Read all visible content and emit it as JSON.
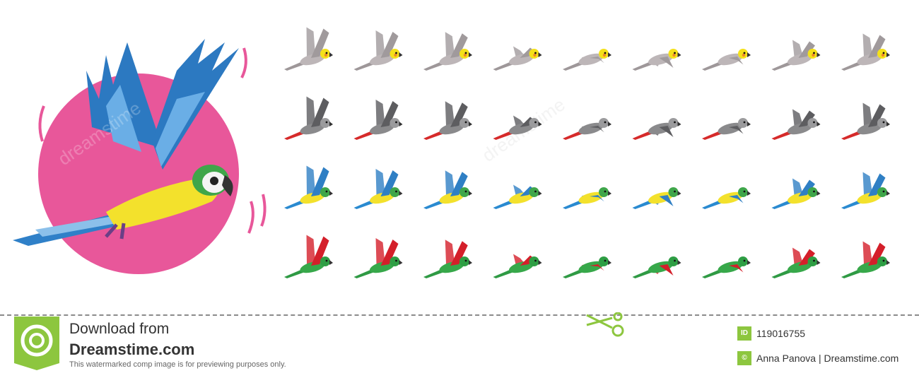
{
  "footer": {
    "download_line1": "Download from",
    "download_line2": "Dreamstime.com",
    "disclaimer": "This watermarked comp image is for previewing purposes only.",
    "id_badge": "ID",
    "id_number": "119016755",
    "credit_badge": "©",
    "credit": "Anna Panova | Dreamstime.com"
  },
  "watermark": {
    "text": "dreamstime"
  },
  "colors": {
    "pink_circle": "#e8579a",
    "logo_green": "#8dc63f",
    "cockatiel": {
      "body": "#bdb6b8",
      "wing": "#a09a9c",
      "head": "#f4e11a",
      "cheek": "#f0862a",
      "tail": "#9e9799"
    },
    "grey": {
      "body": "#8a8a8c",
      "wing": "#5d5d60",
      "head": "#9b9b9d",
      "tail": "#d62a2a"
    },
    "blue": {
      "body": "#f3e12c",
      "wing": "#2f7fc4",
      "head": "#3fa64a",
      "tail": "#2a8ad0"
    },
    "red": {
      "body": "#37a84a",
      "wing": "#d41f2a",
      "head": "#2e9e44",
      "tail": "#2f9a44"
    }
  },
  "sprite_rows": [
    {
      "species": "cockatiel",
      "frames": 9
    },
    {
      "species": "grey",
      "frames": 9
    },
    {
      "species": "blue",
      "frames": 9
    },
    {
      "species": "red",
      "frames": 9
    }
  ]
}
